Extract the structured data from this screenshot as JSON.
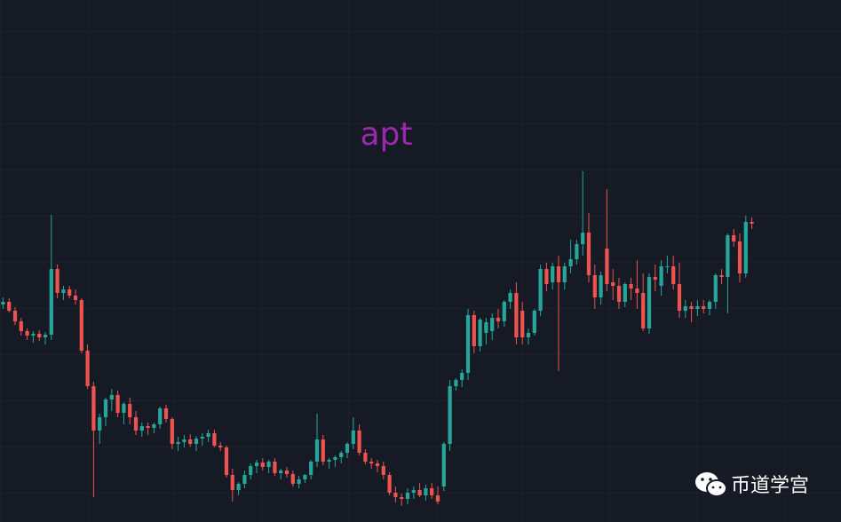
{
  "chart_data": {
    "type": "candlestick",
    "title": "apt",
    "ylim": [
      0,
      588
    ],
    "up_color": "#26a69a",
    "down_color": "#ef5350",
    "title_color": "#9c27b0",
    "open": [
      245,
      248,
      238,
      226,
      215,
      210,
      212,
      208,
      211,
      285,
      258,
      262,
      255,
      250,
      193,
      153,
      103,
      118,
      138,
      143,
      123,
      133,
      118,
      103,
      108,
      106,
      110,
      128,
      116,
      88,
      90,
      93,
      88,
      94,
      96,
      100,
      86,
      84,
      53,
      36,
      43,
      53,
      63,
      67,
      62,
      68,
      55,
      58,
      54,
      43,
      48,
      53,
      68,
      93,
      68,
      70,
      73,
      78,
      88,
      103,
      78,
      68,
      66,
      63,
      53,
      33,
      28,
      26,
      33,
      36,
      30,
      38,
      30,
      40,
      88,
      153,
      160,
      168,
      233,
      198,
      213,
      215,
      230,
      226,
      248,
      258,
      238,
      208,
      213,
      238,
      285,
      270,
      288,
      270,
      288,
      296,
      313,
      326,
      278,
      253,
      308,
      270,
      266,
      248,
      268,
      263,
      258,
      218,
      276,
      266,
      288,
      288,
      268,
      238,
      243,
      240,
      243,
      240,
      248,
      278,
      276,
      323,
      316,
      280,
      338
    ],
    "high": [
      253,
      252,
      242,
      230,
      218,
      215,
      216,
      214,
      346,
      290,
      266,
      266,
      262,
      252,
      200,
      158,
      122,
      140,
      150,
      148,
      135,
      140,
      125,
      112,
      112,
      112,
      130,
      132,
      118,
      96,
      98,
      99,
      97,
      100,
      104,
      104,
      90,
      86,
      60,
      45,
      58,
      66,
      70,
      72,
      70,
      72,
      60,
      62,
      58,
      52,
      54,
      70,
      122,
      98,
      72,
      75,
      80,
      90,
      118,
      110,
      82,
      72,
      70,
      68,
      56,
      40,
      32,
      38,
      40,
      44,
      42,
      44,
      40,
      90,
      160,
      162,
      172,
      240,
      238,
      230,
      230,
      235,
      240,
      250,
      262,
      270,
      248,
      218,
      240,
      290,
      292,
      292,
      300,
      292,
      318,
      318,
      395,
      348,
      290,
      282,
      375,
      285,
      275,
      270,
      275,
      295,
      280,
      280,
      290,
      295,
      300,
      300,
      292,
      250,
      248,
      250,
      250,
      250,
      280,
      285,
      325,
      330,
      325,
      345,
      343
    ],
    "low": [
      240,
      236,
      222,
      210,
      205,
      202,
      204,
      200,
      205,
      252,
      250,
      252,
      245,
      190,
      150,
      28,
      88,
      108,
      125,
      118,
      110,
      110,
      98,
      96,
      98,
      100,
      105,
      112,
      82,
      80,
      84,
      85,
      80,
      86,
      90,
      84,
      80,
      50,
      23,
      30,
      38,
      48,
      55,
      58,
      55,
      52,
      48,
      50,
      40,
      38,
      44,
      48,
      62,
      64,
      60,
      62,
      66,
      72,
      82,
      75,
      65,
      60,
      56,
      48,
      30,
      22,
      18,
      20,
      26,
      28,
      24,
      26,
      20,
      35,
      80,
      148,
      152,
      160,
      190,
      192,
      200,
      205,
      218,
      220,
      240,
      200,
      200,
      200,
      210,
      232,
      260,
      262,
      170,
      262,
      280,
      290,
      300,
      270,
      240,
      245,
      260,
      250,
      240,
      242,
      250,
      240,
      215,
      212,
      260,
      255,
      280,
      262,
      230,
      230,
      225,
      232,
      235,
      233,
      240,
      268,
      235,
      310,
      270,
      275,
      330
    ],
    "close": [
      248,
      238,
      226,
      215,
      210,
      212,
      208,
      211,
      285,
      258,
      262,
      255,
      250,
      193,
      153,
      103,
      118,
      138,
      143,
      123,
      133,
      118,
      103,
      108,
      106,
      110,
      128,
      116,
      88,
      90,
      93,
      88,
      94,
      96,
      100,
      86,
      84,
      53,
      36,
      43,
      53,
      63,
      67,
      62,
      68,
      55,
      58,
      54,
      43,
      48,
      53,
      68,
      93,
      68,
      70,
      73,
      78,
      88,
      103,
      78,
      68,
      66,
      63,
      53,
      33,
      28,
      26,
      33,
      36,
      30,
      38,
      30,
      23,
      88,
      153,
      160,
      168,
      233,
      198,
      228,
      225,
      230,
      226,
      248,
      258,
      208,
      208,
      213,
      238,
      285,
      268,
      288,
      270,
      288,
      296,
      313,
      326,
      278,
      253,
      278,
      268,
      266,
      248,
      268,
      263,
      258,
      218,
      276,
      273,
      288,
      288,
      268,
      238,
      243,
      240,
      243,
      240,
      248,
      278,
      276,
      323,
      316,
      280,
      338,
      336
    ]
  },
  "watermark": "币道学宫"
}
